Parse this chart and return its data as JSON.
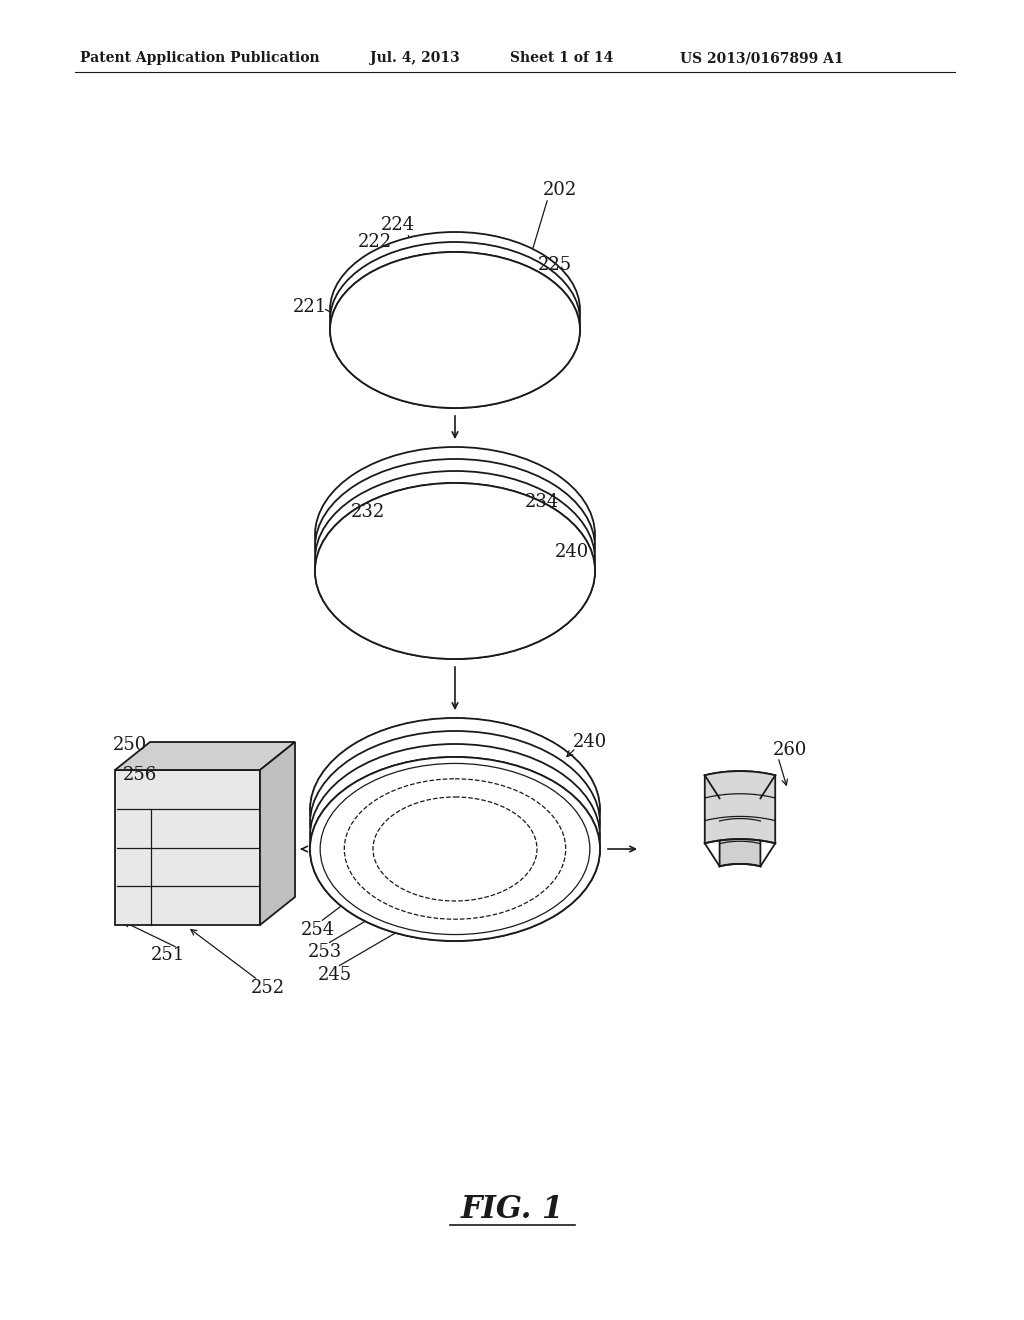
{
  "background_color": "#ffffff",
  "header_text": "Patent Application Publication",
  "header_date": "Jul. 4, 2013",
  "header_sheet": "Sheet 1 of 14",
  "header_patent": "US 2013/0167899 A1",
  "figure_label": "FIG. 1",
  "fig_width": 10.24,
  "fig_height": 13.2,
  "dpi": 100
}
